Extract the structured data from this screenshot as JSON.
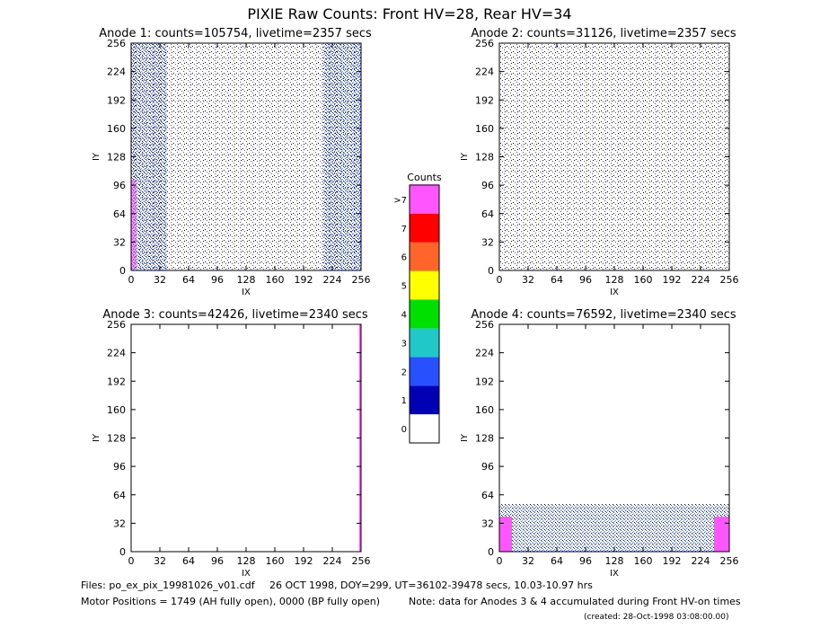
{
  "title": "PIXIE Raw Counts:  Front HV=28, Rear HV=34",
  "chart_data": [
    {
      "type": "heatmap",
      "title": "Anode 1: counts=105754, livetime=2357 secs",
      "xlabel": "IX",
      "ylabel": "IY",
      "xlim": [
        0,
        256
      ],
      "ylim": [
        0,
        256
      ],
      "xticks": [
        0,
        32,
        64,
        96,
        128,
        160,
        192,
        224,
        256
      ],
      "yticks": [
        0,
        32,
        64,
        96,
        128,
        160,
        192,
        224,
        256
      ]
    },
    {
      "type": "heatmap",
      "title": "Anode 2: counts=31126, livetime=2357 secs",
      "xlabel": "IX",
      "ylabel": "IY",
      "xlim": [
        0,
        256
      ],
      "ylim": [
        0,
        256
      ],
      "xticks": [
        0,
        32,
        64,
        96,
        128,
        160,
        192,
        224,
        256
      ],
      "yticks": [
        0,
        32,
        64,
        96,
        128,
        160,
        192,
        224,
        256
      ]
    },
    {
      "type": "heatmap",
      "title": "Anode 3: counts=42426, livetime=2340 secs",
      "xlabel": "IX",
      "ylabel": "IY",
      "xlim": [
        0,
        256
      ],
      "ylim": [
        0,
        256
      ],
      "xticks": [
        0,
        32,
        64,
        96,
        128,
        160,
        192,
        224,
        256
      ],
      "yticks": [
        0,
        32,
        64,
        96,
        128,
        160,
        192,
        224,
        256
      ]
    },
    {
      "type": "heatmap",
      "title": "Anode 4: counts=76592, livetime=2340 secs",
      "xlabel": "IX",
      "ylabel": "IY",
      "xlim": [
        0,
        256
      ],
      "ylim": [
        0,
        256
      ],
      "xticks": [
        0,
        32,
        64,
        96,
        128,
        160,
        192,
        224,
        256
      ],
      "yticks": [
        0,
        32,
        64,
        96,
        128,
        160,
        192,
        224,
        256
      ]
    }
  ],
  "colorbar": {
    "title": "Counts",
    "labels": [
      "0",
      "1",
      "2",
      "3",
      "4",
      "5",
      "6",
      "7",
      ">7"
    ],
    "colors": [
      "#ffffff",
      "#0000b4",
      "#2850ff",
      "#20c8c8",
      "#00e000",
      "#ffff00",
      "#ff6428",
      "#ff0000",
      "#ff55ff"
    ]
  },
  "footer": {
    "files": "Files: po_ex_pix_19981026_v01.cdf",
    "date": "26 OCT 1998, DOY=299, UT=36102-39478 secs, 10.03-10.97 hrs",
    "motor": "Motor Positions = 1749 (AH fully open), 0000 (BP fully open)",
    "note": "Note: data for Anodes 3 & 4 accumulated during Front HV-on times",
    "created": "(created: 28-Oct-1998 03:08:00.00)"
  }
}
